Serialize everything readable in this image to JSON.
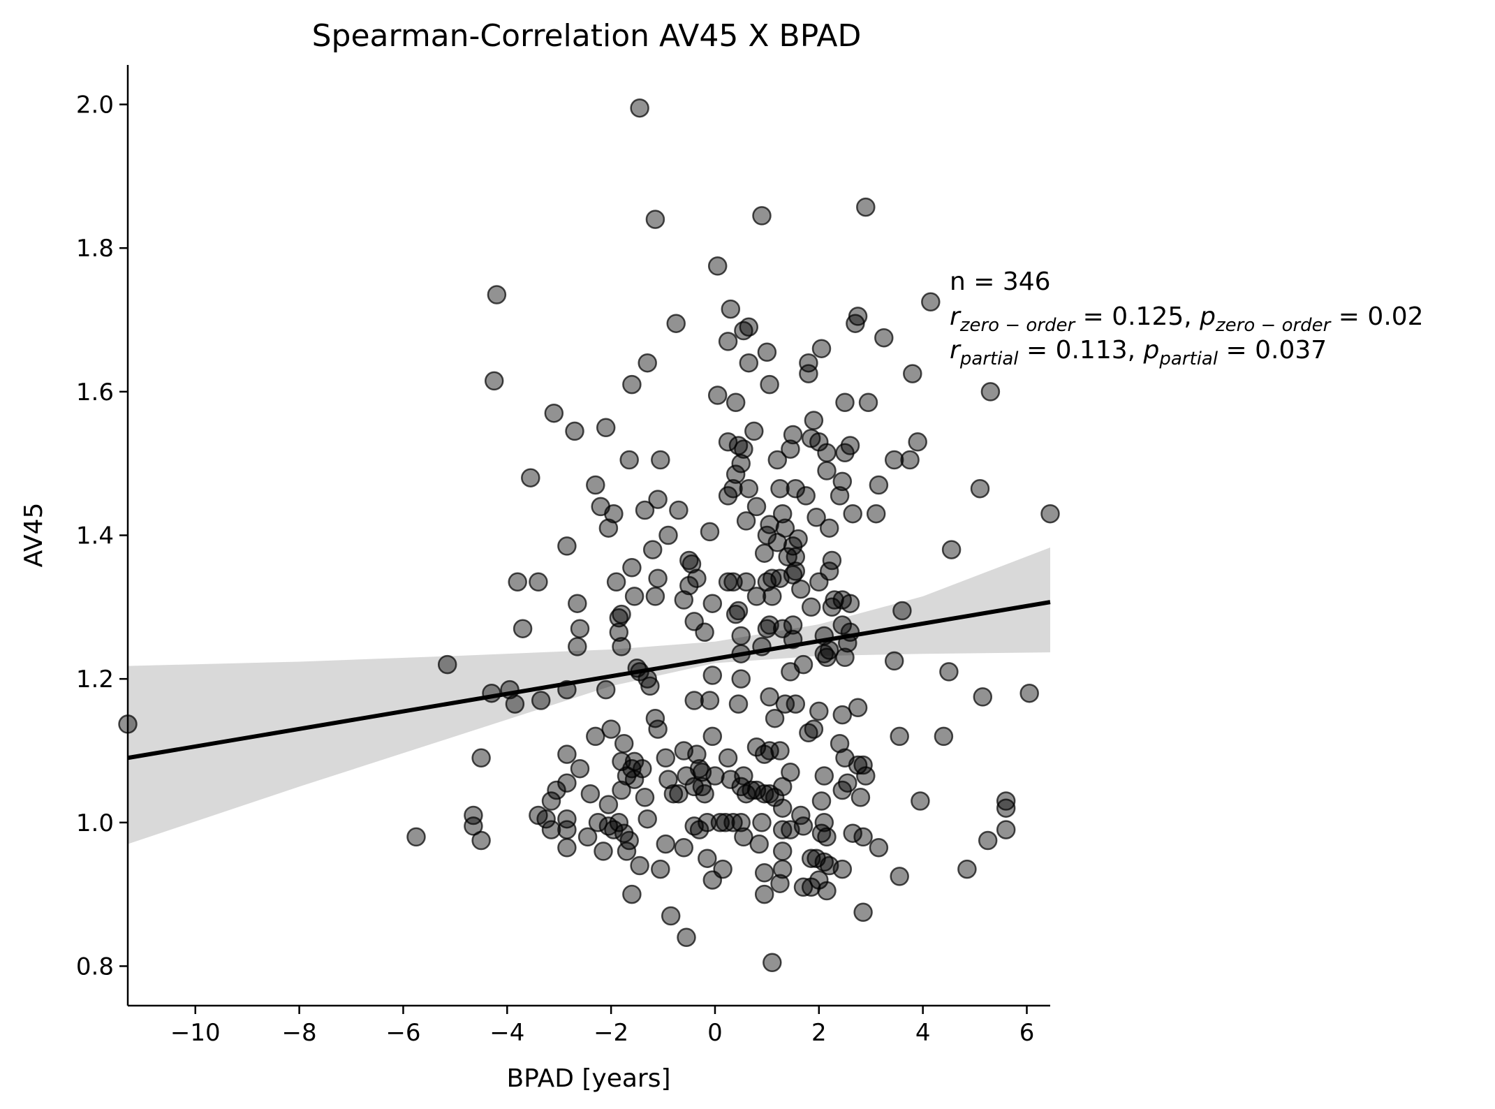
{
  "chart_data": {
    "type": "scatter",
    "title": "Spearman-Correlation AV45 X BPAD",
    "xlabel": "BPAD [years]",
    "ylabel": "AV45",
    "xlim": [
      -11.3,
      6.45
    ],
    "ylim": [
      0.745,
      2.055
    ],
    "xticks": [
      -10,
      -8,
      -6,
      -4,
      -2,
      0,
      2,
      4,
      6
    ],
    "xtick_labels": [
      "−10",
      "−8",
      "−6",
      "−4",
      "−2",
      "0",
      "2",
      "4",
      "6"
    ],
    "yticks": [
      0.8,
      1.0,
      1.2,
      1.4,
      1.6,
      1.8,
      2.0
    ],
    "ytick_labels": [
      "0.8",
      "1.0",
      "1.2",
      "1.4",
      "1.6",
      "1.8",
      "2.0"
    ],
    "grid": false,
    "marker_color": "#000000",
    "marker_opacity": 0.45,
    "regression": {
      "color": "#000000",
      "x": [
        -11.3,
        6.45
      ],
      "y": [
        1.09,
        1.307
      ],
      "ci_color": "#d9d9d9",
      "ci_upper": [
        [
          -11.3,
          1.218
        ],
        [
          -8,
          1.224
        ],
        [
          -5,
          1.232
        ],
        [
          -2,
          1.241
        ],
        [
          0,
          1.252
        ],
        [
          2,
          1.276
        ],
        [
          4,
          1.315
        ],
        [
          6.45,
          1.383
        ]
      ],
      "ci_lower": [
        [
          -11.3,
          0.97
        ],
        [
          -8,
          1.05
        ],
        [
          -5,
          1.12
        ],
        [
          -2,
          1.19
        ],
        [
          0,
          1.222
        ],
        [
          2,
          1.232
        ],
        [
          4,
          1.235
        ],
        [
          6.45,
          1.237
        ]
      ]
    },
    "annotation": {
      "line1": "n = 346",
      "r_zero_var": "r",
      "r_zero_sub": "zero − order",
      "r_zero_val": " = 0.125, ",
      "p_zero_var": "p",
      "p_zero_sub": "zero − order",
      "p_zero_val": " = 0.02",
      "r_partial_var": "r",
      "r_partial_sub": "partial",
      "r_partial_val": " = 0.113, ",
      "p_partial_var": "p",
      "p_partial_sub": "partial",
      "p_partial_val": " = 0.037"
    },
    "points": [
      [
        -1.45,
        1.995
      ],
      [
        -1.15,
        1.84
      ],
      [
        0.9,
        1.845
      ],
      [
        2.9,
        1.857
      ],
      [
        -4.2,
        1.735
      ],
      [
        0.05,
        1.775
      ],
      [
        4.15,
        1.725
      ],
      [
        0.3,
        1.715
      ],
      [
        0.65,
        1.69
      ],
      [
        0.25,
        1.67
      ],
      [
        2.75,
        1.705
      ],
      [
        2.7,
        1.695
      ],
      [
        -0.75,
        1.695
      ],
      [
        0.55,
        1.685
      ],
      [
        3.25,
        1.675
      ],
      [
        -1.3,
        1.64
      ],
      [
        0.65,
        1.64
      ],
      [
        1.0,
        1.655
      ],
      [
        2.05,
        1.66
      ],
      [
        1.8,
        1.64
      ],
      [
        1.8,
        1.625
      ],
      [
        3.8,
        1.625
      ],
      [
        -4.25,
        1.615
      ],
      [
        -1.6,
        1.61
      ],
      [
        0.05,
        1.595
      ],
      [
        0.4,
        1.585
      ],
      [
        1.05,
        1.61
      ],
      [
        2.5,
        1.585
      ],
      [
        2.95,
        1.585
      ],
      [
        5.3,
        1.6
      ],
      [
        -3.1,
        1.57
      ],
      [
        -2.7,
        1.545
      ],
      [
        -2.1,
        1.55
      ],
      [
        0.75,
        1.545
      ],
      [
        1.5,
        1.54
      ],
      [
        1.9,
        1.56
      ],
      [
        1.85,
        1.535
      ],
      [
        2.6,
        1.525
      ],
      [
        3.9,
        1.53
      ],
      [
        0.25,
        1.53
      ],
      [
        0.45,
        1.525
      ],
      [
        0.55,
        1.52
      ],
      [
        -1.65,
        1.505
      ],
      [
        -1.05,
        1.505
      ],
      [
        1.2,
        1.505
      ],
      [
        1.45,
        1.52
      ],
      [
        2.0,
        1.53
      ],
      [
        2.15,
        1.515
      ],
      [
        2.5,
        1.515
      ],
      [
        3.45,
        1.505
      ],
      [
        3.75,
        1.505
      ],
      [
        0.5,
        1.5
      ],
      [
        0.4,
        1.485
      ],
      [
        2.15,
        1.49
      ],
      [
        -3.55,
        1.48
      ],
      [
        -2.3,
        1.47
      ],
      [
        0.35,
        1.465
      ],
      [
        0.65,
        1.465
      ],
      [
        1.25,
        1.465
      ],
      [
        1.55,
        1.465
      ],
      [
        1.75,
        1.455
      ],
      [
        2.45,
        1.475
      ],
      [
        3.15,
        1.47
      ],
      [
        5.1,
        1.465
      ],
      [
        0.25,
        1.455
      ],
      [
        -1.1,
        1.45
      ],
      [
        2.4,
        1.455
      ],
      [
        -2.2,
        1.44
      ],
      [
        -1.35,
        1.435
      ],
      [
        -0.7,
        1.435
      ],
      [
        -1.95,
        1.43
      ],
      [
        0.8,
        1.44
      ],
      [
        1.3,
        1.43
      ],
      [
        2.65,
        1.43
      ],
      [
        3.1,
        1.43
      ],
      [
        6.45,
        1.43
      ],
      [
        1.95,
        1.425
      ],
      [
        0.6,
        1.42
      ],
      [
        1.05,
        1.415
      ],
      [
        1.35,
        1.41
      ],
      [
        -2.05,
        1.41
      ],
      [
        -0.1,
        1.405
      ],
      [
        -0.9,
        1.4
      ],
      [
        1.0,
        1.4
      ],
      [
        1.6,
        1.395
      ],
      [
        2.2,
        1.41
      ],
      [
        1.2,
        1.39
      ],
      [
        1.5,
        1.385
      ],
      [
        -2.85,
        1.385
      ],
      [
        -1.2,
        1.38
      ],
      [
        0.95,
        1.375
      ],
      [
        1.4,
        1.37
      ],
      [
        1.55,
        1.37
      ],
      [
        2.25,
        1.365
      ],
      [
        4.55,
        1.38
      ],
      [
        -0.5,
        1.365
      ],
      [
        -0.45,
        1.36
      ],
      [
        -1.6,
        1.355
      ],
      [
        1.55,
        1.35
      ],
      [
        2.2,
        1.35
      ],
      [
        1.5,
        1.345
      ],
      [
        0.25,
        1.335
      ],
      [
        0.35,
        1.335
      ],
      [
        0.6,
        1.335
      ],
      [
        1.1,
        1.34
      ],
      [
        1.25,
        1.34
      ],
      [
        -3.8,
        1.335
      ],
      [
        -3.4,
        1.335
      ],
      [
        -1.9,
        1.335
      ],
      [
        -1.1,
        1.34
      ],
      [
        -0.35,
        1.34
      ],
      [
        1.0,
        1.335
      ],
      [
        2.0,
        1.335
      ],
      [
        -0.5,
        1.33
      ],
      [
        1.65,
        1.325
      ],
      [
        2.3,
        1.31
      ],
      [
        -1.55,
        1.315
      ],
      [
        -0.6,
        1.31
      ],
      [
        -1.15,
        1.315
      ],
      [
        0.8,
        1.315
      ],
      [
        1.1,
        1.315
      ],
      [
        -2.65,
        1.305
      ],
      [
        -0.05,
        1.305
      ],
      [
        2.45,
        1.31
      ],
      [
        2.6,
        1.305
      ],
      [
        1.85,
        1.3
      ],
      [
        2.25,
        1.3
      ],
      [
        0.45,
        1.295
      ],
      [
        0.4,
        1.29
      ],
      [
        -1.8,
        1.29
      ],
      [
        -1.85,
        1.285
      ],
      [
        3.6,
        1.295
      ],
      [
        -0.4,
        1.28
      ],
      [
        2.45,
        1.275
      ],
      [
        1.0,
        1.27
      ],
      [
        1.05,
        1.275
      ],
      [
        1.5,
        1.275
      ],
      [
        1.3,
        1.27
      ],
      [
        2.6,
        1.265
      ],
      [
        -3.7,
        1.27
      ],
      [
        -2.6,
        1.27
      ],
      [
        -1.85,
        1.265
      ],
      [
        -0.2,
        1.265
      ],
      [
        0.5,
        1.26
      ],
      [
        2.1,
        1.26
      ],
      [
        1.5,
        1.255
      ],
      [
        2.55,
        1.25
      ],
      [
        -2.65,
        1.245
      ],
      [
        -1.8,
        1.245
      ],
      [
        0.9,
        1.245
      ],
      [
        2.2,
        1.24
      ],
      [
        2.1,
        1.235
      ],
      [
        0.5,
        1.235
      ],
      [
        2.5,
        1.23
      ],
      [
        3.45,
        1.225
      ],
      [
        2.15,
        1.23
      ],
      [
        -5.15,
        1.22
      ],
      [
        1.7,
        1.22
      ],
      [
        -1.5,
        1.215
      ],
      [
        -1.45,
        1.21
      ],
      [
        1.45,
        1.21
      ],
      [
        4.5,
        1.21
      ],
      [
        -0.05,
        1.205
      ],
      [
        0.5,
        1.2
      ],
      [
        -1.3,
        1.2
      ],
      [
        -4.3,
        1.18
      ],
      [
        -3.95,
        1.185
      ],
      [
        -2.85,
        1.185
      ],
      [
        -2.1,
        1.185
      ],
      [
        -1.25,
        1.19
      ],
      [
        -3.85,
        1.165
      ],
      [
        -3.35,
        1.17
      ],
      [
        -0.4,
        1.17
      ],
      [
        -0.1,
        1.17
      ],
      [
        0.45,
        1.165
      ],
      [
        1.05,
        1.175
      ],
      [
        1.35,
        1.165
      ],
      [
        1.55,
        1.165
      ],
      [
        5.15,
        1.175
      ],
      [
        6.05,
        1.18
      ],
      [
        -11.3,
        1.137
      ],
      [
        -1.15,
        1.145
      ],
      [
        -1.1,
        1.13
      ],
      [
        1.15,
        1.145
      ],
      [
        2.0,
        1.155
      ],
      [
        2.45,
        1.15
      ],
      [
        2.75,
        1.16
      ],
      [
        3.55,
        1.12
      ],
      [
        4.4,
        1.12
      ],
      [
        -2.3,
        1.12
      ],
      [
        -2.0,
        1.13
      ],
      [
        -0.05,
        1.12
      ],
      [
        1.8,
        1.125
      ],
      [
        1.9,
        1.13
      ],
      [
        -1.75,
        1.11
      ],
      [
        2.4,
        1.11
      ],
      [
        0.8,
        1.105
      ],
      [
        1.25,
        1.1
      ],
      [
        -2.85,
        1.095
      ],
      [
        -4.5,
        1.09
      ],
      [
        -0.6,
        1.1
      ],
      [
        -0.35,
        1.095
      ],
      [
        0.25,
        1.09
      ],
      [
        0.95,
        1.095
      ],
      [
        1.05,
        1.1
      ],
      [
        -1.8,
        1.085
      ],
      [
        -1.55,
        1.085
      ],
      [
        -0.95,
        1.09
      ],
      [
        2.5,
        1.09
      ],
      [
        2.75,
        1.08
      ],
      [
        2.85,
        1.08
      ],
      [
        -2.6,
        1.075
      ],
      [
        -1.6,
        1.075
      ],
      [
        -1.4,
        1.075
      ],
      [
        -0.3,
        1.075
      ],
      [
        -0.25,
        1.07
      ],
      [
        0.55,
        1.065
      ],
      [
        1.45,
        1.07
      ],
      [
        2.9,
        1.065
      ],
      [
        2.1,
        1.065
      ],
      [
        -1.7,
        1.065
      ],
      [
        -1.55,
        1.06
      ],
      [
        -0.9,
        1.06
      ],
      [
        -0.55,
        1.065
      ],
      [
        0.0,
        1.065
      ],
      [
        0.3,
        1.06
      ],
      [
        2.55,
        1.055
      ],
      [
        -2.85,
        1.055
      ],
      [
        -1.8,
        1.045
      ],
      [
        -0.4,
        1.05
      ],
      [
        -0.25,
        1.05
      ],
      [
        0.5,
        1.05
      ],
      [
        0.7,
        1.045
      ],
      [
        0.8,
        1.045
      ],
      [
        1.3,
        1.05
      ],
      [
        2.45,
        1.045
      ],
      [
        -3.05,
        1.045
      ],
      [
        -2.4,
        1.04
      ],
      [
        -1.35,
        1.035
      ],
      [
        -0.7,
        1.04
      ],
      [
        -0.2,
        1.04
      ],
      [
        0.6,
        1.04
      ],
      [
        0.95,
        1.04
      ],
      [
        1.05,
        1.04
      ],
      [
        1.15,
        1.035
      ],
      [
        2.05,
        1.03
      ],
      [
        2.8,
        1.035
      ],
      [
        3.95,
        1.03
      ],
      [
        5.6,
        1.03
      ],
      [
        -3.15,
        1.03
      ],
      [
        -2.05,
        1.025
      ],
      [
        -0.8,
        1.04
      ],
      [
        1.3,
        1.02
      ],
      [
        5.6,
        1.02
      ],
      [
        -2.85,
        1.005
      ],
      [
        -3.4,
        1.01
      ],
      [
        -3.25,
        1.005
      ],
      [
        -4.65,
        1.01
      ],
      [
        -2.25,
        1.0
      ],
      [
        -1.85,
        1.0
      ],
      [
        -1.3,
        1.005
      ],
      [
        -0.15,
        1.0
      ],
      [
        0.1,
        1.0
      ],
      [
        0.35,
        1.0
      ],
      [
        0.5,
        1.0
      ],
      [
        0.9,
        1.0
      ],
      [
        1.65,
        1.01
      ],
      [
        2.1,
        1.0
      ],
      [
        -3.15,
        0.99
      ],
      [
        -2.85,
        0.99
      ],
      [
        -2.45,
        0.98
      ],
      [
        -4.65,
        0.995
      ],
      [
        -2.05,
        0.995
      ],
      [
        -1.95,
        0.99
      ],
      [
        -1.75,
        0.985
      ],
      [
        -0.4,
        0.995
      ],
      [
        -0.3,
        0.99
      ],
      [
        0.2,
        1.0
      ],
      [
        1.3,
        0.99
      ],
      [
        1.45,
        0.99
      ],
      [
        1.7,
        0.995
      ],
      [
        2.05,
        0.985
      ],
      [
        2.15,
        0.98
      ],
      [
        2.65,
        0.985
      ],
      [
        2.85,
        0.98
      ],
      [
        5.6,
        0.99
      ],
      [
        -5.75,
        0.98
      ],
      [
        -4.5,
        0.975
      ],
      [
        -1.65,
        0.975
      ],
      [
        0.55,
        0.98
      ],
      [
        -0.95,
        0.97
      ],
      [
        -2.85,
        0.965
      ],
      [
        -2.15,
        0.96
      ],
      [
        -1.7,
        0.96
      ],
      [
        -0.6,
        0.965
      ],
      [
        0.85,
        0.97
      ],
      [
        1.3,
        0.96
      ],
      [
        3.15,
        0.965
      ],
      [
        5.25,
        0.975
      ],
      [
        -0.15,
        0.95
      ],
      [
        1.85,
        0.95
      ],
      [
        1.95,
        0.95
      ],
      [
        2.1,
        0.945
      ],
      [
        2.2,
        0.94
      ],
      [
        -1.45,
        0.94
      ],
      [
        -1.05,
        0.935
      ],
      [
        0.15,
        0.935
      ],
      [
        1.3,
        0.935
      ],
      [
        2.45,
        0.935
      ],
      [
        4.85,
        0.935
      ],
      [
        0.95,
        0.93
      ],
      [
        -0.05,
        0.92
      ],
      [
        2.0,
        0.92
      ],
      [
        3.55,
        0.925
      ],
      [
        1.25,
        0.915
      ],
      [
        1.7,
        0.91
      ],
      [
        1.85,
        0.91
      ],
      [
        2.15,
        0.905
      ],
      [
        -1.6,
        0.9
      ],
      [
        0.95,
        0.9
      ],
      [
        2.85,
        0.875
      ],
      [
        -0.85,
        0.87
      ],
      [
        -0.55,
        0.84
      ],
      [
        1.1,
        0.805
      ]
    ]
  }
}
